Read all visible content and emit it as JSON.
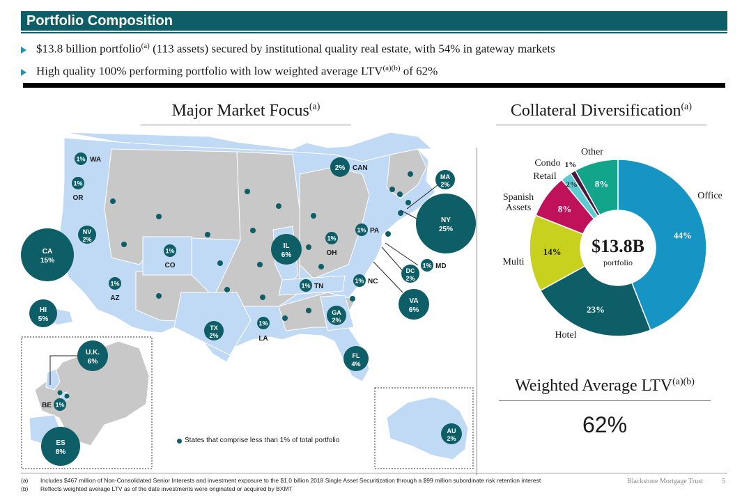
{
  "header": {
    "title": "Portfolio Composition"
  },
  "bullets": [
    {
      "pre": "$13.8 billion portfolio",
      "sup": "(a)",
      "post": " (113 assets) secured by institutional quality real estate, with 54% in gateway markets"
    },
    {
      "pre": "High quality 100% performing portfolio with low weighted average LTV",
      "sup": "(a)(b)",
      "post": " of 62%"
    }
  ],
  "map_section": {
    "title": "Major Market Focus",
    "title_sup": "(a)",
    "legend_note": "States that comprise less than 1% of total portfolio",
    "markers": [
      {
        "label": "WA",
        "value": "1%"
      },
      {
        "label": "OR",
        "value": "1%"
      },
      {
        "label": "NV",
        "value": "2%"
      },
      {
        "label": "CA",
        "value": "15%"
      },
      {
        "label": "HI",
        "value": "5%"
      },
      {
        "label": "AZ",
        "value": "1%"
      },
      {
        "label": "CO",
        "value": "1%"
      },
      {
        "label": "TX",
        "value": "2%"
      },
      {
        "label": "LA",
        "value": "1%"
      },
      {
        "label": "IL",
        "value": "6%"
      },
      {
        "label": "OH",
        "value": "1%"
      },
      {
        "label": "PA",
        "value": "1%"
      },
      {
        "label": "TN",
        "value": "1%"
      },
      {
        "label": "NC",
        "value": "1%"
      },
      {
        "label": "GA",
        "value": "2%"
      },
      {
        "label": "FL",
        "value": "4%"
      },
      {
        "label": "VA",
        "value": "6%"
      },
      {
        "label": "DC",
        "value": "2%"
      },
      {
        "label": "MD",
        "value": "1%"
      },
      {
        "label": "NY",
        "value": "25%"
      },
      {
        "label": "MA",
        "value": "2%"
      },
      {
        "label": "CAN",
        "value": "2%"
      },
      {
        "label": "U.K.",
        "value": "6%"
      },
      {
        "label": "BE",
        "value": "1%"
      },
      {
        "label": "ES",
        "value": "8%"
      },
      {
        "label": "AU",
        "value": "2%"
      }
    ]
  },
  "chart_data": {
    "type": "pie",
    "title": "Collateral Diversification",
    "title_sup": "(a)",
    "center_value": "$13.8B",
    "center_label": "portfolio",
    "categories": [
      "Office",
      "Hotel",
      "Multi",
      "Spanish Assets",
      "Retail",
      "Condo",
      "Other"
    ],
    "values": [
      44,
      23,
      14,
      8,
      2,
      1,
      8
    ],
    "value_labels": [
      "44%",
      "23%",
      "14%",
      "8%",
      "2%",
      "1%",
      "8%"
    ],
    "colors": [
      "#1694c4",
      "#0d5e66",
      "#c8d21e",
      "#c0125a",
      "#5ccbd1",
      "#4a1642",
      "#13a58c"
    ]
  },
  "ltv": {
    "title": "Weighted Average LTV",
    "title_sup": "(a)(b)",
    "value": "62%"
  },
  "footnotes": [
    {
      "mark": "(a)",
      "text": "Includes $467 million of Non-Consolidated Senior Interests and investment exposure to the $1.0 billion 2018 Single Asset Securitization through a $99 million subordinate risk retention interest"
    },
    {
      "mark": "(b)",
      "text": "Reflects weighted average LTV as of the date investments were originated or acquired by BXMT"
    }
  ],
  "footer": {
    "brand": "Blackstone Mortgage Trust",
    "page": "5"
  }
}
